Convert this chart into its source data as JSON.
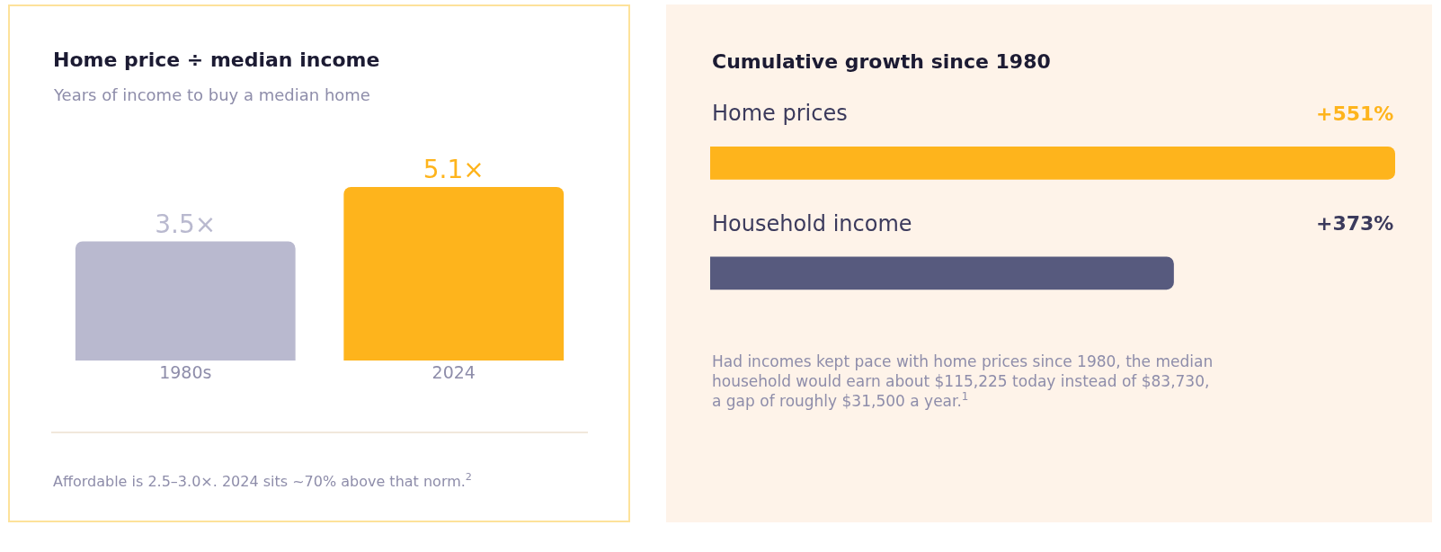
{
  "chart_data": [
    {
      "type": "bar",
      "title": "Home price ÷ median income",
      "subtitle": "Years of income to buy a median home",
      "categories": [
        "1980s",
        "2024"
      ],
      "values": [
        3.5,
        5.1
      ],
      "colors": [
        "#b9b9cf",
        "#feb41c"
      ],
      "value_labels": [
        "3.5×",
        "5.1×"
      ],
      "annotations": [
        "Affordable is 2.5–3.0×. 2024 sits ~70% above that norm.$^{2}$"
      ]
    },
    {
      "type": "bar",
      "orientation": "horizontal",
      "title": "Cumulative growth since 1980",
      "categories": [
        "Home prices",
        "Household income"
      ],
      "values": [
        551,
        373
      ],
      "colors": [
        "#feb41c",
        "#575a7e"
      ],
      "value_labels": [
        "+551%",
        "+373%"
      ],
      "annotations": [
        "Had incomes kept pace with home prices since 1980, the median household would earn about $115,225 today instead of $83,730, a gap of roughly $31,500 a year.$^{1}$"
      ]
    }
  ]
}
